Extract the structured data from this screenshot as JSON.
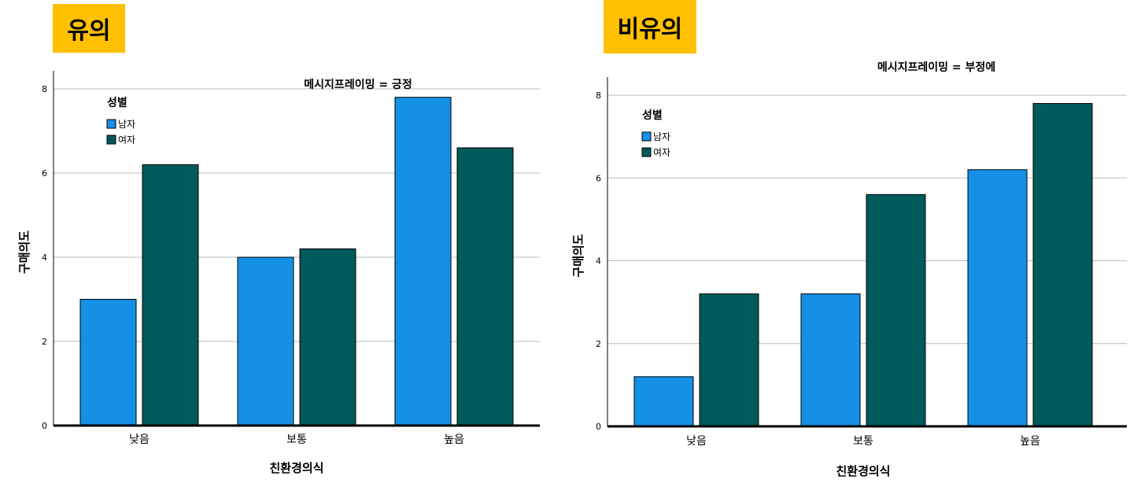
{
  "badges": {
    "left": "유의",
    "right": "비유의"
  },
  "colors": {
    "badge": "#ffc000",
    "series_male": "#1490e6",
    "series_female": "#005a5a",
    "grid": "#bbbbbb"
  },
  "chart_data": [
    {
      "type": "bar",
      "title": "메시지프레이밍 = 긍정",
      "xlabel": "친환경의식",
      "ylabel": "구매의도",
      "categories": [
        "낮음",
        "보통",
        "높음"
      ],
      "ylim": [
        0,
        8
      ],
      "yticks": [
        0,
        2,
        4,
        6,
        8
      ],
      "grid": true,
      "legend": {
        "title": "성별",
        "position": "top-left"
      },
      "series": [
        {
          "name": "남자",
          "color": "#1490e6",
          "values": [
            3.0,
            4.0,
            7.8
          ]
        },
        {
          "name": "여자",
          "color": "#005a5a",
          "values": [
            6.2,
            4.2,
            6.6
          ]
        }
      ]
    },
    {
      "type": "bar",
      "title": "메시지프레이밍 = 부정에",
      "xlabel": "친환경의식",
      "ylabel": "구매의도",
      "categories": [
        "낮음",
        "보통",
        "높음"
      ],
      "ylim": [
        0,
        8
      ],
      "yticks": [
        0,
        2,
        4,
        6,
        8
      ],
      "grid": true,
      "legend": {
        "title": "성별",
        "position": "top-left"
      },
      "series": [
        {
          "name": "남자",
          "color": "#1490e6",
          "values": [
            1.2,
            3.2,
            6.2
          ]
        },
        {
          "name": "여자",
          "color": "#005a5a",
          "values": [
            3.2,
            5.6,
            7.8
          ]
        }
      ]
    }
  ]
}
